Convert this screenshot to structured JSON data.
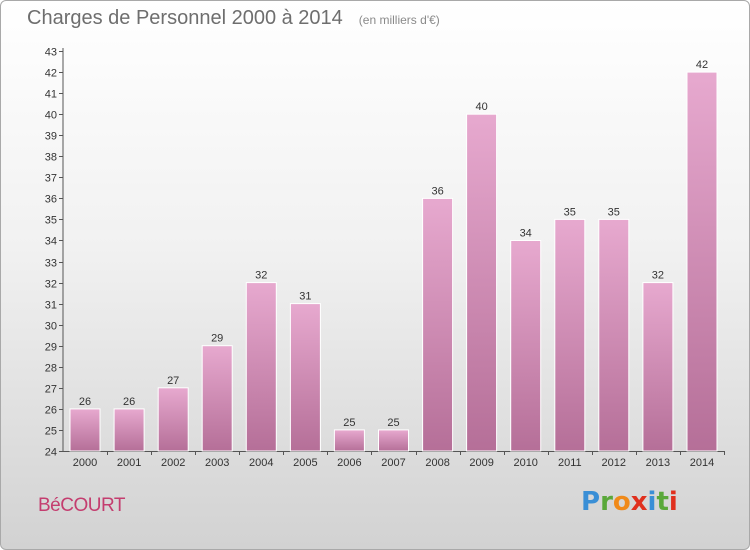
{
  "header": {
    "title": "Charges de Personnel 2000 à 2014",
    "subtitle": "(en milliers d'€)"
  },
  "footer": {
    "commune": "BéCOURT",
    "brand": "Proxiti"
  },
  "colors": {
    "bar_top": "#e7a9cf",
    "bar_bottom": "#b56f98",
    "commune": "#c43d6f",
    "brand_letters": [
      "#3a8fd6",
      "#5aa83a",
      "#f08a1a",
      "#e0301e",
      "#3a8fd6",
      "#5aa83a",
      "#e0301e"
    ]
  },
  "chart_data": {
    "type": "bar",
    "title": "Charges de Personnel 2000 à 2014",
    "subtitle": "(en milliers d'€)",
    "categories": [
      "2000",
      "2001",
      "2002",
      "2003",
      "2004",
      "2005",
      "2006",
      "2007",
      "2008",
      "2009",
      "2010",
      "2011",
      "2012",
      "2013",
      "2014"
    ],
    "values": [
      26,
      26,
      27,
      29,
      32,
      31,
      25,
      25,
      36,
      40,
      34,
      35,
      35,
      32,
      42
    ],
    "ylim": [
      24,
      43
    ],
    "yticks": [
      24,
      25,
      26,
      27,
      28,
      29,
      30,
      31,
      32,
      33,
      34,
      35,
      36,
      37,
      38,
      39,
      40,
      41,
      42,
      43
    ],
    "grid": false,
    "legend": "none"
  }
}
